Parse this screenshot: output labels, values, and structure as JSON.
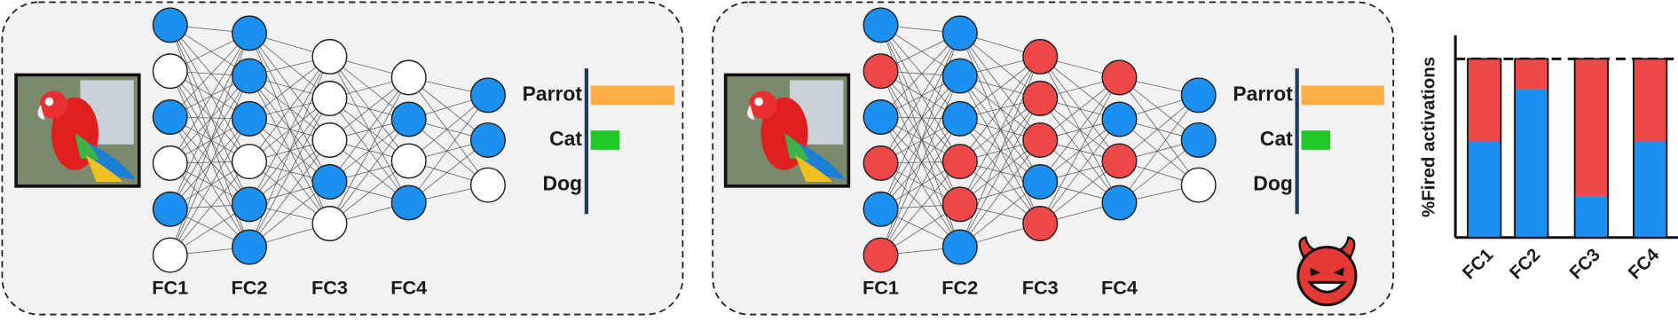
{
  "panels": [
    {
      "layers": [
        {
          "label": "FC1",
          "neurons": [
            "#1a90f0",
            "#ffffff",
            "#1a90f0",
            "#ffffff",
            "#1a90f0",
            "#ffffff"
          ]
        },
        {
          "label": "FC2",
          "neurons": [
            "#1a90f0",
            "#1a90f0",
            "#1a90f0",
            "#ffffff",
            "#1a90f0",
            "#1a90f0"
          ]
        },
        {
          "label": "FC3",
          "neurons": [
            "#ffffff",
            "#ffffff",
            "#ffffff",
            "#1a90f0",
            "#ffffff"
          ]
        },
        {
          "label": "FC4",
          "neurons": [
            "#ffffff",
            "#1a90f0",
            "#ffffff",
            "#1a90f0"
          ]
        },
        {
          "neurons": [
            "#1a90f0",
            "#1a90f0",
            "#ffffff"
          ]
        }
      ],
      "outputs": {
        "labels": [
          "Parrot",
          "Cat",
          "Dog"
        ],
        "values": [
          0.87,
          0.3,
          0
        ],
        "colors": [
          "#ffad45",
          "#22c72a"
        ]
      }
    },
    {
      "layers": [
        {
          "label": "FC1",
          "neurons": [
            "#1a90f0",
            "#f04848",
            "#1a90f0",
            "#f04848",
            "#1a90f0",
            "#f04848"
          ]
        },
        {
          "label": "FC2",
          "neurons": [
            "#1a90f0",
            "#1a90f0",
            "#1a90f0",
            "#f04848",
            "#f04848",
            "#1a90f0"
          ]
        },
        {
          "label": "FC3",
          "neurons": [
            "#f04848",
            "#f04848",
            "#f04848",
            "#1a90f0",
            "#f04848"
          ]
        },
        {
          "label": "FC4",
          "neurons": [
            "#f04848",
            "#1a90f0",
            "#f04848",
            "#1a90f0"
          ]
        },
        {
          "neurons": [
            "#1a90f0",
            "#1a90f0",
            "#ffffff"
          ]
        }
      ],
      "outputs": {
        "labels": [
          "Parrot",
          "Cat",
          "Dog"
        ],
        "values": [
          0.86,
          0.3,
          0
        ],
        "colors": [
          "#ffad45",
          "#22c72a"
        ]
      }
    }
  ],
  "chart_data": {
    "type": "bar",
    "stacked": true,
    "ylabel": "%Fired activations",
    "categories": [
      "FC1",
      "FC2",
      "FC3",
      "FC4"
    ],
    "series": [
      {
        "color": "#1a90f0",
        "values": [
          54,
          83,
          23,
          54
        ]
      },
      {
        "color": "#f04848",
        "values": [
          46,
          17,
          77,
          46
        ]
      }
    ],
    "ylim": [
      0,
      100
    ]
  }
}
